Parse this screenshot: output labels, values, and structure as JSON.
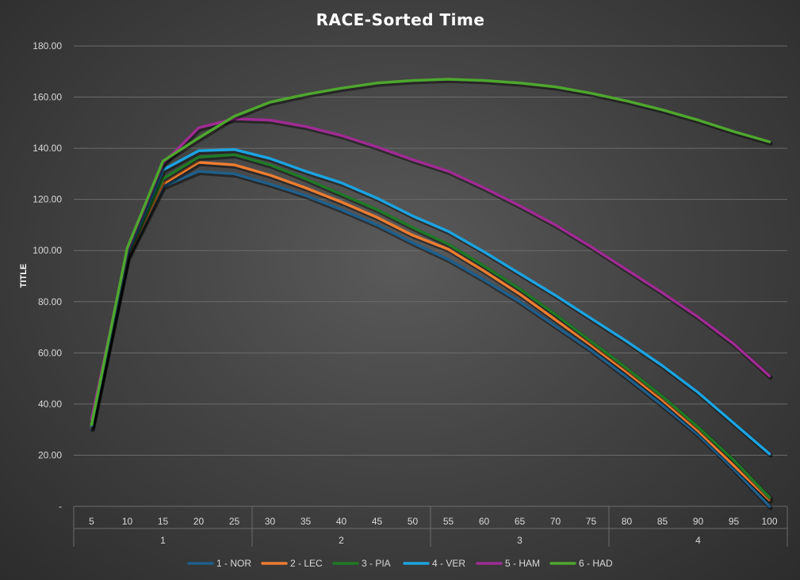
{
  "chart_data": {
    "type": "line",
    "title": "RACE-Sorted Time",
    "ylabel": "TITLE",
    "xlabel": "",
    "ylim": [
      0,
      180
    ],
    "y_ticks": [
      "-",
      "20.00",
      "40.00",
      "60.00",
      "80.00",
      "100.00",
      "120.00",
      "140.00",
      "160.00",
      "180.00"
    ],
    "grid": true,
    "legend_position": "bottom",
    "categories": [
      "5",
      "10",
      "15",
      "20",
      "25",
      "30",
      "35",
      "40",
      "45",
      "50",
      "55",
      "60",
      "65",
      "70",
      "75",
      "80",
      "85",
      "90",
      "95",
      "100"
    ],
    "groups": [
      {
        "label": "1",
        "categories": [
          "5",
          "10",
          "15",
          "20",
          "25"
        ]
      },
      {
        "label": "2",
        "categories": [
          "30",
          "35",
          "40",
          "45",
          "50"
        ]
      },
      {
        "label": "3",
        "categories": [
          "55",
          "60",
          "65",
          "70",
          "75"
        ]
      },
      {
        "label": "4",
        "categories": [
          "80",
          "85",
          "90",
          "95",
          "100"
        ]
      }
    ],
    "series": [
      {
        "name": "1 - NOR",
        "color": "#1f5f8b",
        "values": [
          30.5,
          97,
          125,
          131,
          130,
          126,
          121.5,
          116,
          110,
          103,
          96.5,
          88.5,
          80,
          70.5,
          61,
          50.5,
          39.5,
          28,
          14.5,
          0
        ]
      },
      {
        "name": "2 - LEC",
        "color": "#ed7d31",
        "values": [
          31,
          97.5,
          126,
          134.5,
          133.5,
          129.5,
          124.5,
          119,
          113,
          106,
          100.5,
          92,
          83,
          73,
          63,
          52.5,
          41.5,
          29.5,
          16,
          2.5
        ]
      },
      {
        "name": "3 - PIA",
        "color": "#1e7a26",
        "values": [
          31.5,
          98,
          128,
          136.5,
          137.5,
          133.5,
          128,
          122,
          116,
          109,
          102.5,
          94,
          85,
          75,
          64.5,
          54,
          43,
          31,
          18,
          3.5
        ]
      },
      {
        "name": "4 - VER",
        "color": "#1ca3e0",
        "values": [
          31.5,
          98.5,
          131.5,
          139,
          139.5,
          136,
          131,
          126.5,
          120.5,
          113.5,
          107.5,
          99.5,
          91,
          82.5,
          73.5,
          64.5,
          55,
          44.5,
          32.5,
          20.5
        ]
      },
      {
        "name": "5 - HAM",
        "color": "#a02b93",
        "values": [
          34,
          100,
          134,
          148,
          151.5,
          151,
          148.5,
          145,
          140.5,
          135.5,
          131,
          124.5,
          117.5,
          110,
          101.5,
          92.5,
          83.5,
          74,
          63.5,
          51
        ]
      },
      {
        "name": "6 - HAD",
        "color": "#4ea72e",
        "values": [
          32,
          101,
          135,
          144,
          152.5,
          158,
          161,
          163.5,
          165.5,
          166.5,
          167,
          166.5,
          165.5,
          164,
          161.5,
          158.5,
          155,
          151,
          146.5,
          142.5
        ]
      }
    ]
  }
}
